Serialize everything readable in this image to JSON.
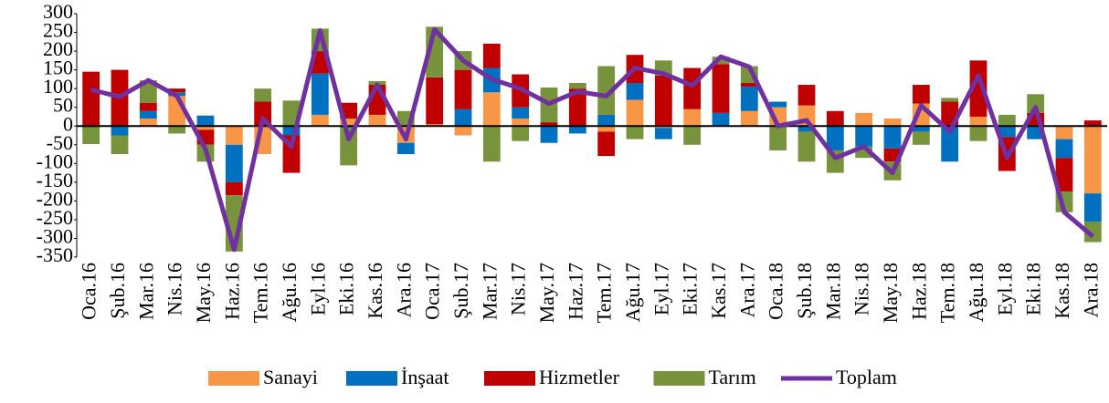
{
  "chart_data": {
    "type": "bar",
    "stacked": true,
    "categories": [
      "Oca.16",
      "Şub.16",
      "Mar.16",
      "Nis.16",
      "May.16",
      "Haz.16",
      "Tem.16",
      "Ağu.16",
      "Eyl.16",
      "Eki.16",
      "Kas.16",
      "Ara.16",
      "Oca.17",
      "Şub.17",
      "Mar.17",
      "Nis.17",
      "May.17",
      "Haz.17",
      "Tem.17",
      "Ağu.17",
      "Eyl.17",
      "Eki.17",
      "Kas.17",
      "Ara.17",
      "Oca.18",
      "Şub.18",
      "Mar.18",
      "Nis.18",
      "May.18",
      "Haz.18",
      "Tem.18",
      "Ağu.18",
      "Eyl.18",
      "Eki.18",
      "Kas.18",
      "Ara.18"
    ],
    "series": [
      {
        "name": "Sanayi",
        "type": "bar",
        "color": "#f79646",
        "values": [
          0,
          0,
          20,
          80,
          -10,
          -50,
          -75,
          0,
          30,
          20,
          30,
          -45,
          5,
          -25,
          90,
          20,
          0,
          0,
          -15,
          70,
          -5,
          45,
          0,
          40,
          50,
          55,
          0,
          35,
          20,
          60,
          0,
          25,
          0,
          0,
          -35,
          -180
        ]
      },
      {
        "name": "İnşaat",
        "type": "bar",
        "color": "#0070c0",
        "values": [
          -3,
          -25,
          20,
          10,
          28,
          -100,
          0,
          -25,
          110,
          -5,
          0,
          -30,
          0,
          45,
          65,
          30,
          -45,
          -20,
          30,
          45,
          -30,
          0,
          35,
          65,
          15,
          -15,
          -65,
          -55,
          -60,
          -15,
          -95,
          0,
          -30,
          -35,
          -50,
          -75
        ]
      },
      {
        "name": "Hizmetler",
        "type": "bar",
        "color": "#c00000",
        "values": [
          145,
          150,
          22,
          10,
          -40,
          -35,
          65,
          -100,
          60,
          42,
          80,
          0,
          125,
          105,
          65,
          88,
          10,
          100,
          -65,
          75,
          135,
          110,
          130,
          10,
          0,
          55,
          40,
          0,
          -35,
          50,
          65,
          150,
          -90,
          35,
          -90,
          15
        ]
      },
      {
        "name": "Tarım",
        "type": "bar",
        "color": "#77933c",
        "values": [
          -45,
          -50,
          60,
          -20,
          -45,
          -150,
          35,
          68,
          60,
          -100,
          10,
          40,
          135,
          50,
          -95,
          -40,
          93,
          15,
          130,
          -35,
          40,
          -50,
          20,
          45,
          -65,
          -80,
          -60,
          -30,
          -50,
          -35,
          10,
          -40,
          30,
          50,
          -55,
          -55
        ]
      },
      {
        "name": "Toplam",
        "type": "line",
        "color": "#7030a0",
        "values": [
          97,
          78,
          122,
          80,
          -62,
          -330,
          20,
          -55,
          255,
          -35,
          110,
          -35,
          258,
          175,
          125,
          100,
          60,
          92,
          80,
          155,
          140,
          108,
          185,
          158,
          0,
          15,
          -85,
          -55,
          -125,
          55,
          -15,
          135,
          -85,
          50,
          -230,
          -295
        ]
      }
    ],
    "ylim": [
      -350,
      300
    ],
    "yticks": [
      -350,
      -300,
      -250,
      -200,
      -150,
      -100,
      -50,
      0,
      50,
      100,
      150,
      200,
      250,
      300
    ]
  }
}
